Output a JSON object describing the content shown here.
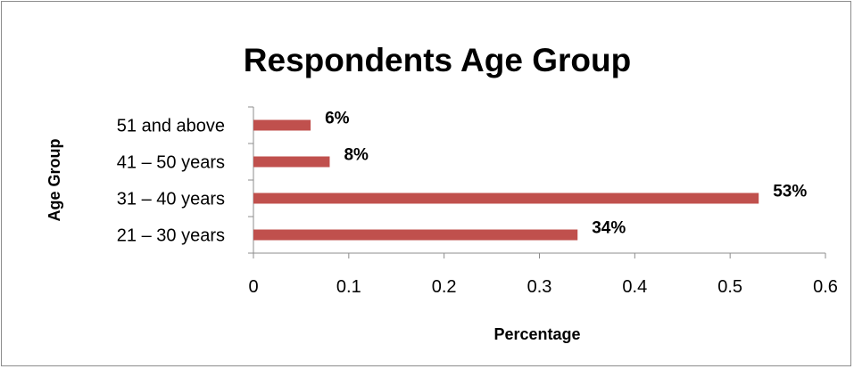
{
  "chart_data": {
    "type": "bar",
    "orientation": "horizontal",
    "title": "Respondents Age Group",
    "xlabel": "Percentage",
    "ylabel": "Age Group",
    "categories": [
      "21 – 30 years",
      "31 – 40 years",
      "41 – 50 years",
      "51 and above"
    ],
    "values": [
      0.34,
      0.53,
      0.08,
      0.06
    ],
    "data_labels": [
      "34%",
      "53%",
      "8%",
      "6%"
    ],
    "xlim": [
      0,
      0.6
    ],
    "x_ticks": [
      "0",
      "0.1",
      "0.2",
      "0.3",
      "0.4",
      "0.5",
      "0.6"
    ],
    "bar_color": "#c0504d",
    "grid": false,
    "legend": "none"
  }
}
